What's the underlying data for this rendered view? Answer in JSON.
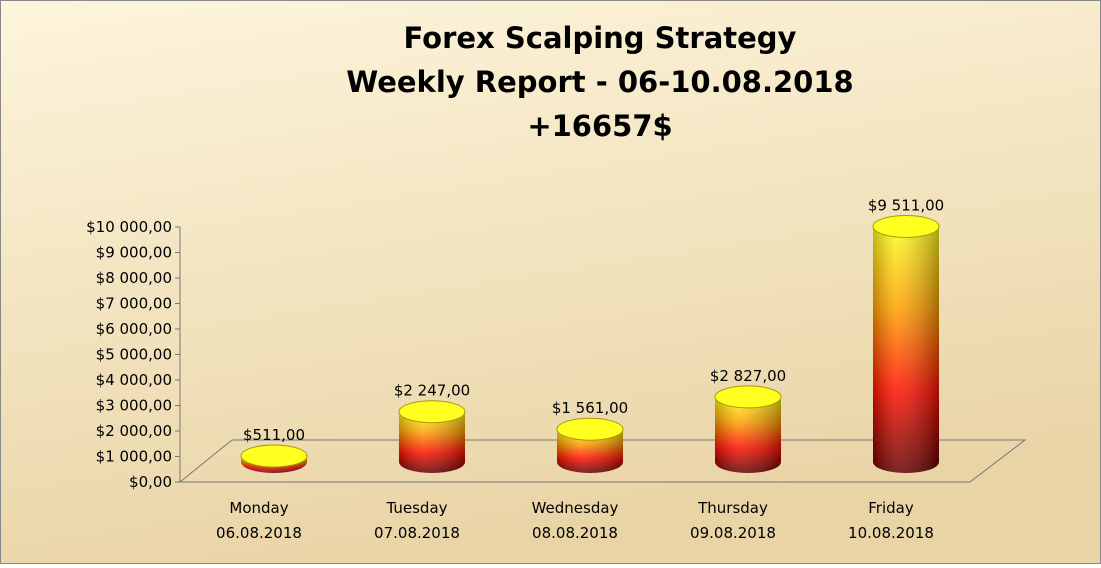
{
  "chart_data": {
    "type": "cylinder",
    "title": "Forex Scalping Strategy",
    "subtitle": "Weekly Report - 06-10.08.2018",
    "annotation": "+16657$",
    "categories": [
      [
        "Monday",
        "06.08.2018"
      ],
      [
        "Tuesday",
        "07.08.2018"
      ],
      [
        "Wednesday",
        "08.08.2018"
      ],
      [
        "Thursday",
        "09.08.2018"
      ],
      [
        "Friday",
        "10.08.2018"
      ]
    ],
    "values": [
      511,
      2247,
      1561,
      2827,
      9511
    ],
    "value_labels": [
      "$511,00",
      "$2 247,00",
      "$1 561,00",
      "$2 827,00",
      "$9 511,00"
    ],
    "gradient": [
      "#ffff20",
      "#ffa000",
      "#ff1000",
      "#600000"
    ],
    "ylim": [
      0,
      10000
    ],
    "yticks": [
      {
        "value": 0,
        "label": "$0,00"
      },
      {
        "value": 1000,
        "label": "$1 000,00"
      },
      {
        "value": 2000,
        "label": "$2 000,00"
      },
      {
        "value": 3000,
        "label": "$3 000,00"
      },
      {
        "value": 4000,
        "label": "$4 000,00"
      },
      {
        "value": 5000,
        "label": "$5 000,00"
      },
      {
        "value": 6000,
        "label": "$6 000,00"
      },
      {
        "value": 7000,
        "label": "$7 000,00"
      },
      {
        "value": 8000,
        "label": "$8 000,00"
      },
      {
        "value": 9000,
        "label": "$9 000,00"
      },
      {
        "value": 10000,
        "label": "$10 000,00"
      }
    ]
  }
}
